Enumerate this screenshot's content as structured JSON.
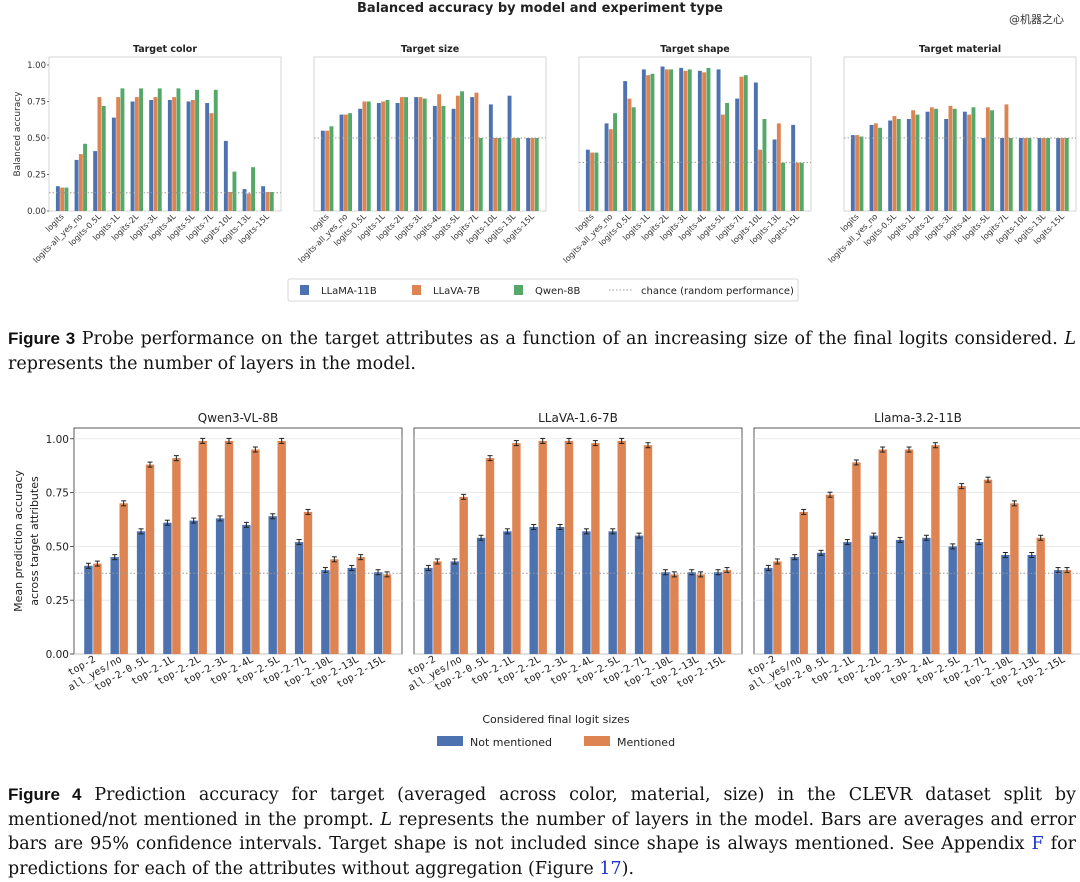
{
  "watermark": "@机器之心",
  "figure3": {
    "caption_label": "Figure 3",
    "caption_text": " Probe performance on the target attributes as a function of an increasing size of the final logits considered.",
    "caption_var": "L",
    "caption_text2": " represents the number of layers in the model."
  },
  "figure4": {
    "caption_label": "Figure 4",
    "caption_text": " Prediction accuracy for target (averaged across color, material, size) in the CLEVR dataset split by mentioned/not mentioned in the prompt. ",
    "caption_var": "L",
    "caption_text2": " represents the number of layers in the model. Bars are averages and error bars are 95% confidence intervals. Target shape is not included since shape is always mentioned. See Appendix ",
    "caption_link1": "F",
    "caption_text3": " for predictions for each of the attributes without aggregation (Figure ",
    "caption_link2": "17",
    "caption_text4": ")."
  },
  "colors": {
    "llama": "#4c72b0",
    "llava": "#dd8452",
    "qwen": "#55a868",
    "not_mentioned": "#4c72b0",
    "mentioned": "#dd8452",
    "chance": "#999999"
  },
  "chart_data": [
    {
      "type": "bar",
      "title": "Balanced accuracy by model and experiment type",
      "ylabel": "Balanced accuracy",
      "ylim": [
        0,
        1.0
      ],
      "yticks": [
        "0.00",
        "0.25",
        "0.50",
        "0.75",
        "1.00"
      ],
      "categories": [
        "logits",
        "logits-all_yes_no",
        "logits-0.5L",
        "logits-1L",
        "logits-2L",
        "logits-3L",
        "logits-4L",
        "logits-5L",
        "logits-7L",
        "logits-10L",
        "logits-13L",
        "logits-15L"
      ],
      "legend": [
        "LLaMA-11B",
        "LLaVA-7B",
        "Qwen-8B",
        "chance (random performance)"
      ],
      "legend_position": "bottom",
      "panels": [
        {
          "title": "Target color",
          "chance": 0.125,
          "series": [
            {
              "name": "LLaMA-11B",
              "values": [
                0.17,
                0.35,
                0.41,
                0.64,
                0.75,
                0.76,
                0.76,
                0.75,
                0.74,
                0.48,
                0.15,
                0.17
              ]
            },
            {
              "name": "LLaVA-7B",
              "values": [
                0.16,
                0.39,
                0.78,
                0.78,
                0.78,
                0.78,
                0.78,
                0.76,
                0.67,
                0.13,
                0.12,
                0.13
              ]
            },
            {
              "name": "Qwen-8B",
              "values": [
                0.16,
                0.46,
                0.72,
                0.84,
                0.84,
                0.84,
                0.84,
                0.83,
                0.83,
                0.27,
                0.3,
                0.13
              ]
            }
          ]
        },
        {
          "title": "Target size",
          "chance": 0.5,
          "series": [
            {
              "name": "LLaMA-11B",
              "values": [
                0.55,
                0.66,
                0.7,
                0.74,
                0.74,
                0.78,
                0.72,
                0.7,
                0.78,
                0.73,
                0.79,
                0.5
              ]
            },
            {
              "name": "LLaVA-7B",
              "values": [
                0.55,
                0.66,
                0.75,
                0.75,
                0.78,
                0.78,
                0.8,
                0.79,
                0.81,
                0.5,
                0.5,
                0.5
              ]
            },
            {
              "name": "Qwen-8B",
              "values": [
                0.58,
                0.67,
                0.75,
                0.76,
                0.78,
                0.77,
                0.72,
                0.82,
                0.5,
                0.5,
                0.5,
                0.5
              ]
            }
          ]
        },
        {
          "title": "Target shape",
          "chance": 0.333,
          "series": [
            {
              "name": "LLaMA-11B",
              "values": [
                0.42,
                0.6,
                0.89,
                0.97,
                0.99,
                0.98,
                0.96,
                0.97,
                0.77,
                0.88,
                0.49,
                0.59
              ]
            },
            {
              "name": "LLaVA-7B",
              "values": [
                0.4,
                0.56,
                0.77,
                0.93,
                0.97,
                0.96,
                0.95,
                0.66,
                0.92,
                0.42,
                0.6,
                0.33
              ]
            },
            {
              "name": "Qwen-8B",
              "values": [
                0.4,
                0.67,
                0.71,
                0.94,
                0.97,
                0.97,
                0.98,
                0.74,
                0.93,
                0.63,
                0.33,
                0.33
              ]
            }
          ]
        },
        {
          "title": "Target material",
          "chance": 0.5,
          "series": [
            {
              "name": "LLaMA-11B",
              "values": [
                0.52,
                0.59,
                0.62,
                0.63,
                0.68,
                0.63,
                0.68,
                0.5,
                0.5,
                0.5,
                0.5,
                0.5
              ]
            },
            {
              "name": "LLaVA-7B",
              "values": [
                0.52,
                0.6,
                0.65,
                0.69,
                0.71,
                0.72,
                0.66,
                0.71,
                0.73,
                0.5,
                0.5,
                0.5
              ]
            },
            {
              "name": "Qwen-8B",
              "values": [
                0.51,
                0.57,
                0.63,
                0.66,
                0.7,
                0.7,
                0.71,
                0.69,
                0.5,
                0.5,
                0.5,
                0.5
              ]
            }
          ]
        }
      ]
    },
    {
      "type": "bar",
      "xlabel": "Considered final logit sizes",
      "ylabel": "Mean prediction accuracy\nacross target attributes",
      "ylim": [
        0,
        1.05
      ],
      "yticks": [
        "0.00",
        "0.25",
        "0.50",
        "0.75",
        "1.00"
      ],
      "categories": [
        "top-2",
        "all_yes/no",
        "top-2-0.5L",
        "top-2-1L",
        "top-2-2L",
        "top-2-3L",
        "top-2-4L",
        "top-2-5L",
        "top-2-7L",
        "top-2-10L",
        "top-2-13L",
        "top-2-15L"
      ],
      "legend": [
        "Not mentioned",
        "Mentioned"
      ],
      "legend_position": "bottom",
      "chance": 0.375,
      "panels": [
        {
          "title": "Qwen3-VL-8B",
          "series": [
            {
              "name": "Not mentioned",
              "values": [
                0.41,
                0.45,
                0.57,
                0.61,
                0.62,
                0.63,
                0.6,
                0.64,
                0.52,
                0.39,
                0.4,
                0.38
              ]
            },
            {
              "name": "Mentioned",
              "values": [
                0.42,
                0.7,
                0.88,
                0.91,
                0.99,
                0.99,
                0.95,
                0.99,
                0.66,
                0.44,
                0.45,
                0.37
              ]
            }
          ]
        },
        {
          "title": "LLaVA-1.6-7B",
          "series": [
            {
              "name": "Not mentioned",
              "values": [
                0.4,
                0.43,
                0.54,
                0.57,
                0.59,
                0.59,
                0.57,
                0.57,
                0.55,
                0.38,
                0.38,
                0.38
              ]
            },
            {
              "name": "Mentioned",
              "values": [
                0.43,
                0.73,
                0.91,
                0.98,
                0.99,
                0.99,
                0.98,
                0.99,
                0.97,
                0.37,
                0.37,
                0.39
              ]
            }
          ]
        },
        {
          "title": "Llama-3.2-11B",
          "series": [
            {
              "name": "Not mentioned",
              "values": [
                0.4,
                0.45,
                0.47,
                0.52,
                0.55,
                0.53,
                0.54,
                0.5,
                0.52,
                0.46,
                0.46,
                0.39
              ]
            },
            {
              "name": "Mentioned",
              "values": [
                0.43,
                0.66,
                0.74,
                0.89,
                0.95,
                0.95,
                0.97,
                0.78,
                0.81,
                0.7,
                0.54,
                0.39
              ]
            }
          ]
        }
      ]
    }
  ]
}
